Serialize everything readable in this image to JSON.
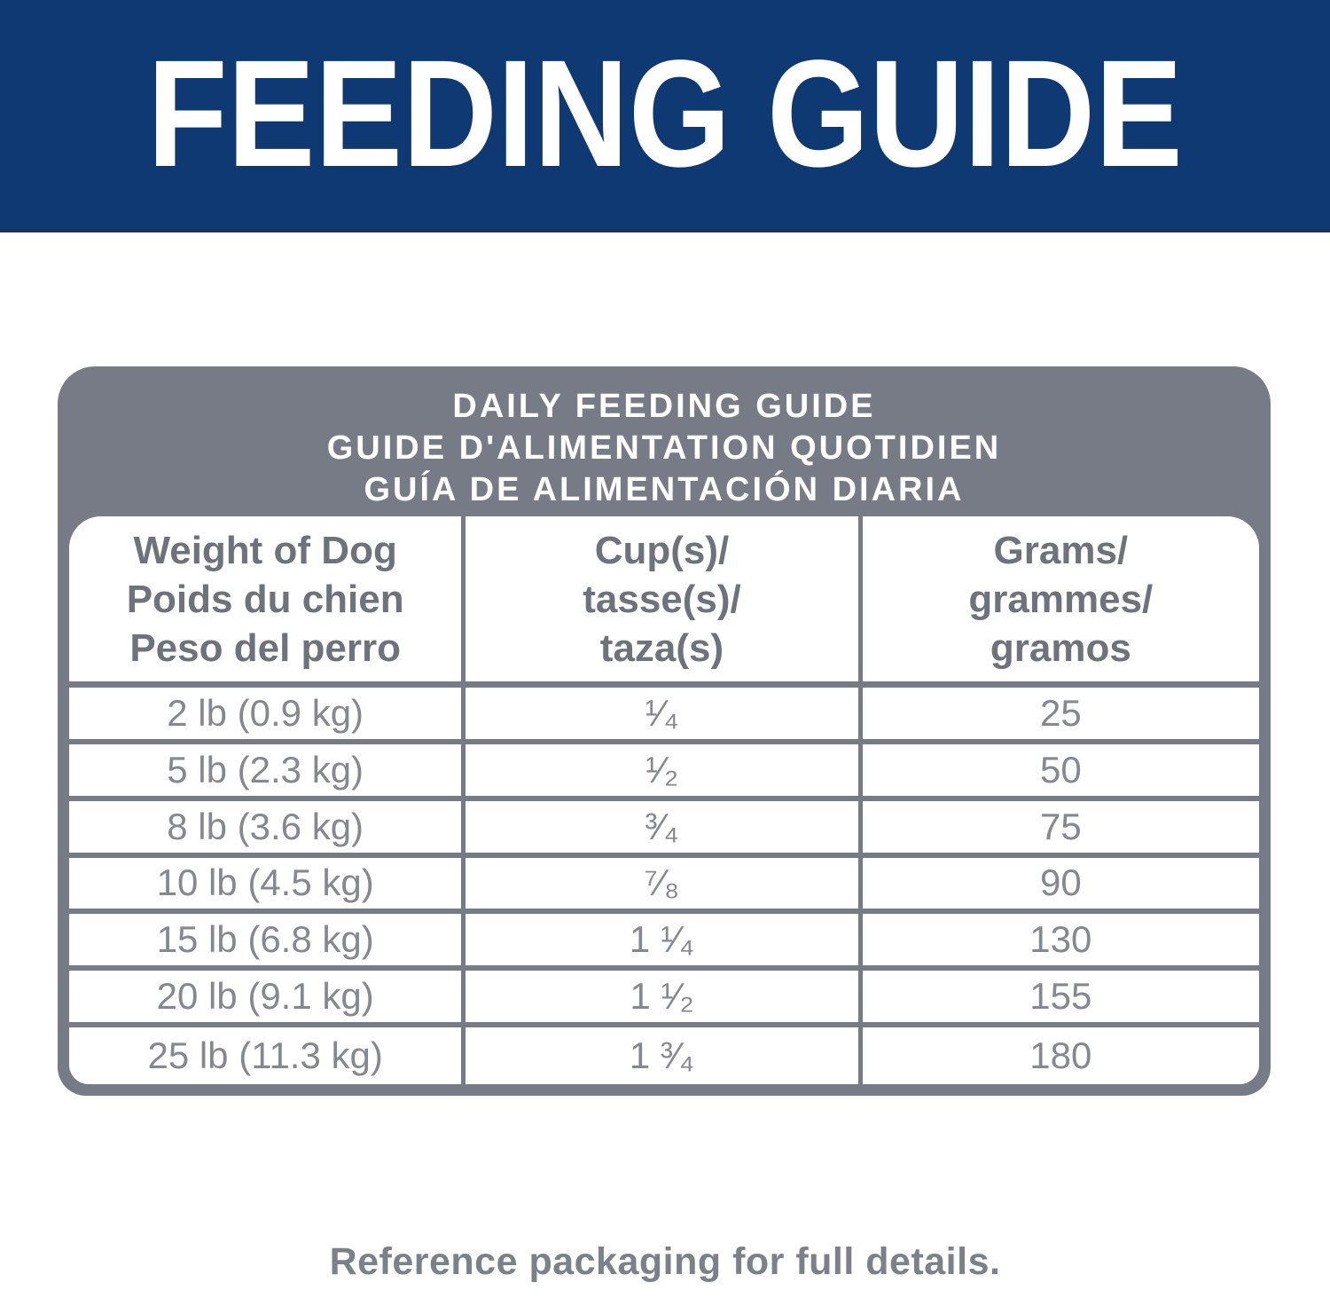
{
  "banner": {
    "title": "FEEDING GUIDE",
    "bg_color": "#0e3973",
    "text_color": "#ffffff"
  },
  "table": {
    "title": "DAILY FEEDING GUIDE\nGUIDE D'ALIMENTATION QUOTIDIEN\nGUÍA DE ALIMENTACIÓN DIARIA",
    "frame_color": "#767b86",
    "header_text_color": "#6e727b",
    "body_text_color": "#85888f",
    "columns": [
      {
        "label": "Weight of Dog\nPoids du chien\nPeso del perro"
      },
      {
        "label": "Cup(s)/\ntasse(s)/\ntaza(s)"
      },
      {
        "label": "Grams/\ngrammes/\ngramos"
      }
    ],
    "rows": [
      {
        "weight": "2 lb (0.9 kg)",
        "cups": "¹⁄₄",
        "grams": "25"
      },
      {
        "weight": "5 lb (2.3 kg)",
        "cups": "¹⁄₂",
        "grams": "50"
      },
      {
        "weight": "8 lb (3.6 kg)",
        "cups": "³⁄₄",
        "grams": "75"
      },
      {
        "weight": "10 lb (4.5 kg)",
        "cups": "⁷⁄₈",
        "grams": "90"
      },
      {
        "weight": "15 lb (6.8 kg)",
        "cups": "1 ¹⁄₄",
        "grams": "130"
      },
      {
        "weight": "20 lb (9.1 kg)",
        "cups": "1 ¹⁄₂",
        "grams": "155"
      },
      {
        "weight": "25 lb (11.3 kg)",
        "cups": "1 ³⁄₄",
        "grams": "180"
      }
    ]
  },
  "footer": {
    "note": "Reference packaging for full details."
  }
}
